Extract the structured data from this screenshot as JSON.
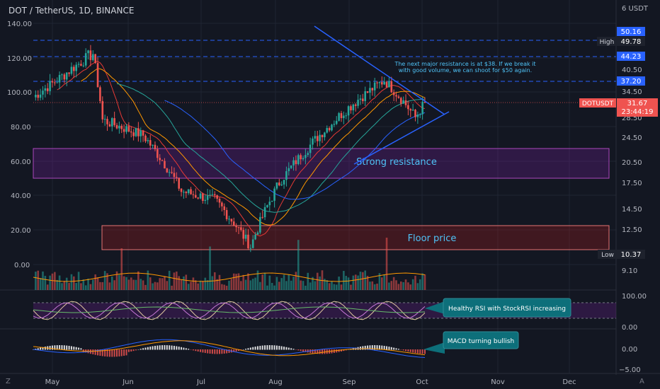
{
  "header": {
    "title": "DOT / TetherUS, 1D, BINANCE"
  },
  "left_axis": {
    "ticks": [
      "140.00",
      "120.00",
      "100.00",
      "80.00",
      "60.00",
      "40.00",
      "20.00",
      "0.00"
    ]
  },
  "right_axis": {
    "ticks": [
      "6 USDT",
      "40.50",
      "34.50",
      "28.50",
      "24.50",
      "20.50",
      "17.50",
      "14.50",
      "12.50",
      "9.10"
    ],
    "oscillator_ticks": [
      "100.00",
      "0.00",
      "0.00",
      "−5.00"
    ]
  },
  "price_labels": {
    "high_label": "High",
    "high_value": "49.78",
    "level_50": "50.16",
    "level_44": "44.23",
    "level_37": "37.20",
    "symbol": "DOTUSDT",
    "last_price": "31.67",
    "countdown": "23:44:19",
    "low_label": "Low",
    "low_value": "10.37"
  },
  "annotations": {
    "resistance_note_1": "The next major resistance is at $38. If we break it",
    "resistance_note_2": "with good volume, we can shoot for $50 again.",
    "strong_resistance": "Strong resistance",
    "floor_price": "Floor price",
    "rsi_note": "Healthy RSI with StockRSI increasing",
    "macd_note": "MACD turning bullish"
  },
  "time_axis": {
    "labels": [
      "May",
      "Jun",
      "Jul",
      "Aug",
      "Sep",
      "Oct",
      "Nov",
      "Dec"
    ]
  },
  "footer": {
    "left_icon": "Z",
    "right_icon": "A"
  },
  "colors": {
    "up": "#26a69a",
    "down": "#ef5350",
    "accent": "#2962ff",
    "zone_purple": "#7b1fa2",
    "zone_red": "#b71c1c",
    "ma_red": "#e53935",
    "ma_orange": "#ff9800",
    "ma_green": "#26a69a",
    "ma_blue": "#2962ff"
  },
  "chart_data": {
    "type": "candlestick",
    "title": "DOT / TetherUS, 1D, BINANCE",
    "x": [
      "2021-05",
      "2021-06",
      "2021-07",
      "2021-08",
      "2021-09",
      "2021-10"
    ],
    "ohlc_anchors": [
      {
        "date": "2021-05-01",
        "close": 38.0
      },
      {
        "date": "2021-05-15",
        "close": 45.0
      },
      {
        "date": "2021-05-19",
        "close": 28.0
      },
      {
        "date": "2021-06-05",
        "close": 25.0
      },
      {
        "date": "2021-06-21",
        "close": 16.5
      },
      {
        "date": "2021-07-05",
        "close": 15.5
      },
      {
        "date": "2021-07-20",
        "close": 11.0
      },
      {
        "date": "2021-08-01",
        "close": 17.5
      },
      {
        "date": "2021-08-20",
        "close": 26.0
      },
      {
        "date": "2021-09-01",
        "close": 31.5
      },
      {
        "date": "2021-09-14",
        "close": 37.5
      },
      {
        "date": "2021-09-27",
        "close": 28.5
      },
      {
        "date": "2021-10-01",
        "close": 31.67
      }
    ],
    "horizontal_levels": [
      50.16,
      44.23,
      37.2
    ],
    "high": 49.78,
    "low": 10.37,
    "last": 31.67,
    "zones": [
      {
        "name": "Strong resistance"
      },
      {
        "name": "Floor price"
      }
    ]
  }
}
